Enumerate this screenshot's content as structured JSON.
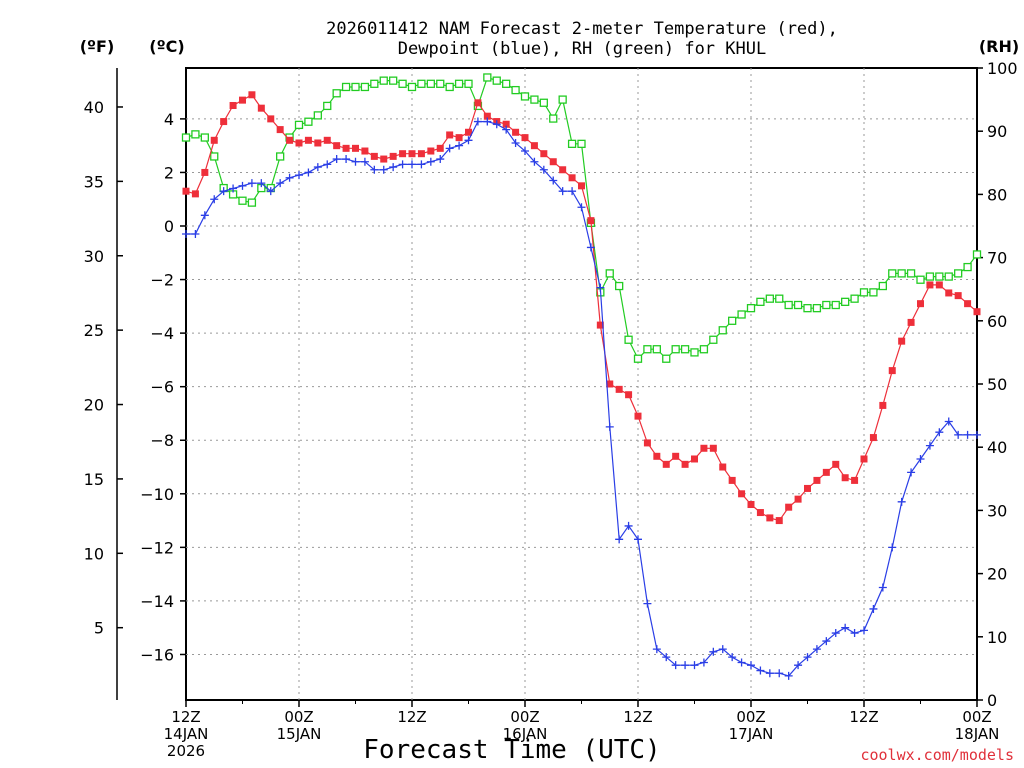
{
  "chart_data": {
    "type": "line",
    "title_line1": "2026011412 NAM Forecast 2-meter Temperature (red),",
    "title_line2": "Dewpoint (blue), RH (green) for KHUL",
    "xlabel": "Forecast Time (UTC)",
    "credit": "coolwx.com/models",
    "unit_f": "(ºF)",
    "unit_c": "(ºC)",
    "unit_rh": "(RH)",
    "x_range_hours": [
      0,
      84
    ],
    "x_ticks": [
      {
        "hour": 0,
        "lines": [
          "12Z",
          "14JAN",
          "2026"
        ]
      },
      {
        "hour": 12,
        "lines": [
          "00Z",
          "15JAN"
        ]
      },
      {
        "hour": 24,
        "lines": [
          "12Z"
        ]
      },
      {
        "hour": 36,
        "lines": [
          "00Z",
          "16JAN"
        ]
      },
      {
        "hour": 48,
        "lines": [
          "12Z"
        ]
      },
      {
        "hour": 60,
        "lines": [
          "00Z",
          "17JAN"
        ]
      },
      {
        "hour": 72,
        "lines": [
          "12Z"
        ]
      },
      {
        "hour": 84,
        "lines": [
          "00Z",
          "18JAN"
        ]
      }
    ],
    "y_celsius": {
      "range": [
        -17.7,
        5.9
      ],
      "ticks": [
        "4",
        "2",
        "0",
        "−2",
        "−4",
        "−6",
        "−8",
        "−10",
        "−12",
        "−14",
        "−16"
      ],
      "tick_values": [
        4,
        2,
        0,
        -2,
        -4,
        -6,
        -8,
        -10,
        -12,
        -14,
        -16
      ]
    },
    "y_fahrenheit": {
      "ticks": [
        "40",
        "35",
        "30",
        "25",
        "20",
        "15",
        "10",
        "5"
      ],
      "tick_values": [
        40,
        35,
        30,
        25,
        20,
        15,
        10,
        5
      ]
    },
    "y_rh": {
      "range": [
        0,
        100
      ],
      "ticks": [
        "100",
        "90",
        "80",
        "70",
        "60",
        "50",
        "40",
        "30",
        "20",
        "10",
        "0"
      ],
      "tick_values": [
        100,
        90,
        80,
        70,
        60,
        50,
        40,
        30,
        20,
        10,
        0
      ]
    },
    "series": [
      {
        "name": "Temperature",
        "units": "°C",
        "color": "#ee2f3a",
        "marker": "filled-square",
        "x": [
          0,
          1,
          2,
          3,
          4,
          5,
          6,
          7,
          8,
          9,
          10,
          11,
          12,
          13,
          14,
          15,
          16,
          17,
          18,
          19,
          20,
          21,
          22,
          23,
          24,
          25,
          26,
          27,
          28,
          29,
          30,
          31,
          32,
          33,
          34,
          35,
          36,
          37,
          38,
          39,
          40,
          41,
          42,
          43,
          44,
          45,
          46,
          47,
          48,
          49,
          50,
          51,
          52,
          53,
          54,
          55,
          56,
          57,
          58,
          59,
          60,
          61,
          62,
          63,
          64,
          65,
          66,
          67,
          68,
          69,
          70,
          71,
          72,
          73,
          74,
          75,
          76,
          77,
          78,
          79,
          80,
          81,
          82,
          83,
          84
        ],
        "values": [
          1.3,
          1.2,
          2.0,
          3.2,
          3.9,
          4.5,
          4.7,
          4.9,
          4.4,
          4.0,
          3.6,
          3.2,
          3.1,
          3.2,
          3.1,
          3.2,
          3.0,
          2.9,
          2.9,
          2.8,
          2.6,
          2.5,
          2.6,
          2.7,
          2.7,
          2.7,
          2.8,
          2.9,
          3.4,
          3.3,
          3.5,
          4.6,
          4.1,
          3.9,
          3.8,
          3.5,
          3.3,
          3.0,
          2.7,
          2.4,
          2.1,
          1.8,
          1.5,
          0.2,
          -3.7,
          -5.9,
          -6.1,
          -6.3,
          -7.1,
          -8.1,
          -8.6,
          -8.9,
          -8.6,
          -8.9,
          -8.7,
          -8.3,
          -8.3,
          -9.0,
          -9.5,
          -10.0,
          -10.4,
          -10.7,
          -10.9,
          -11.0,
          -10.5,
          -10.2,
          -9.8,
          -9.5,
          -9.2,
          -8.9,
          -9.4,
          -9.5,
          -8.7,
          -7.9,
          -6.7,
          -5.4,
          -4.3,
          -3.6,
          -2.9,
          -2.2,
          -2.2,
          -2.5,
          -2.6,
          -2.9,
          -3.2
        ]
      },
      {
        "name": "Dewpoint",
        "units": "°C",
        "color": "#2a3ee6",
        "marker": "plus",
        "x": [
          0,
          1,
          2,
          3,
          4,
          5,
          6,
          7,
          8,
          9,
          10,
          11,
          12,
          13,
          14,
          15,
          16,
          17,
          18,
          19,
          20,
          21,
          22,
          23,
          24,
          25,
          26,
          27,
          28,
          29,
          30,
          31,
          32,
          33,
          34,
          35,
          36,
          37,
          38,
          39,
          40,
          41,
          42,
          43,
          44,
          45,
          46,
          47,
          48,
          49,
          50,
          51,
          52,
          53,
          54,
          55,
          56,
          57,
          58,
          59,
          60,
          61,
          62,
          63,
          64,
          65,
          66,
          67,
          68,
          69,
          70,
          71,
          72,
          73,
          74,
          75,
          76,
          77,
          78,
          79,
          80,
          81,
          82,
          83,
          84
        ],
        "values": [
          -0.3,
          -0.3,
          0.4,
          1.0,
          1.3,
          1.4,
          1.5,
          1.6,
          1.6,
          1.3,
          1.6,
          1.8,
          1.9,
          2.0,
          2.2,
          2.3,
          2.5,
          2.5,
          2.4,
          2.4,
          2.1,
          2.1,
          2.2,
          2.3,
          2.3,
          2.3,
          2.4,
          2.5,
          2.9,
          3.0,
          3.2,
          3.9,
          3.9,
          3.8,
          3.6,
          3.1,
          2.8,
          2.4,
          2.1,
          1.7,
          1.3,
          1.3,
          0.7,
          -0.8,
          -2.3,
          -7.5,
          -11.7,
          -11.2,
          -11.7,
          -14.1,
          -15.8,
          -16.1,
          -16.4,
          -16.4,
          -16.4,
          -16.3,
          -15.9,
          -15.8,
          -16.1,
          -16.3,
          -16.4,
          -16.6,
          -16.7,
          -16.7,
          -16.8,
          -16.4,
          -16.1,
          -15.8,
          -15.5,
          -15.2,
          -15.0,
          -15.2,
          -15.1,
          -14.3,
          -13.5,
          -12.0,
          -10.3,
          -9.2,
          -8.7,
          -8.2,
          -7.7,
          -7.3,
          -7.8,
          -7.8,
          -7.8
        ]
      },
      {
        "name": "RH",
        "units": "%",
        "color": "#22cc22",
        "marker": "open-square",
        "x": [
          0,
          1,
          2,
          3,
          4,
          5,
          6,
          7,
          8,
          9,
          10,
          11,
          12,
          13,
          14,
          15,
          16,
          17,
          18,
          19,
          20,
          21,
          22,
          23,
          24,
          25,
          26,
          27,
          28,
          29,
          30,
          31,
          32,
          33,
          34,
          35,
          36,
          37,
          38,
          39,
          40,
          41,
          42,
          43,
          44,
          45,
          46,
          47,
          48,
          49,
          50,
          51,
          52,
          53,
          54,
          55,
          56,
          57,
          58,
          59,
          60,
          61,
          62,
          63,
          64,
          65,
          66,
          67,
          68,
          69,
          70,
          71,
          72,
          73,
          74,
          75,
          76,
          77,
          78,
          79,
          80,
          81,
          82,
          83,
          84
        ],
        "values": [
          89,
          89.5,
          89,
          86,
          81,
          80,
          79,
          78.7,
          81,
          81,
          86,
          89,
          91,
          91.5,
          92.5,
          94,
          96,
          97,
          97,
          97,
          97.5,
          98,
          98,
          97.5,
          97,
          97.5,
          97.5,
          97.5,
          97,
          97.5,
          97.5,
          94,
          98.5,
          98,
          97.5,
          96.5,
          95.5,
          95,
          94.5,
          92,
          95,
          88,
          88,
          75.5,
          64.5,
          67.5,
          65.5,
          57,
          54,
          55.5,
          55.5,
          54,
          55.5,
          55.5,
          55,
          55.5,
          57,
          58.5,
          60,
          61,
          62,
          63,
          63.5,
          63.5,
          62.5,
          62.5,
          62,
          62,
          62.5,
          62.5,
          63,
          63.5,
          64.5,
          64.5,
          65.5,
          67.5,
          67.5,
          67.5,
          66.5,
          67,
          67,
          67,
          67.5,
          68.5,
          70.5
        ]
      }
    ]
  }
}
